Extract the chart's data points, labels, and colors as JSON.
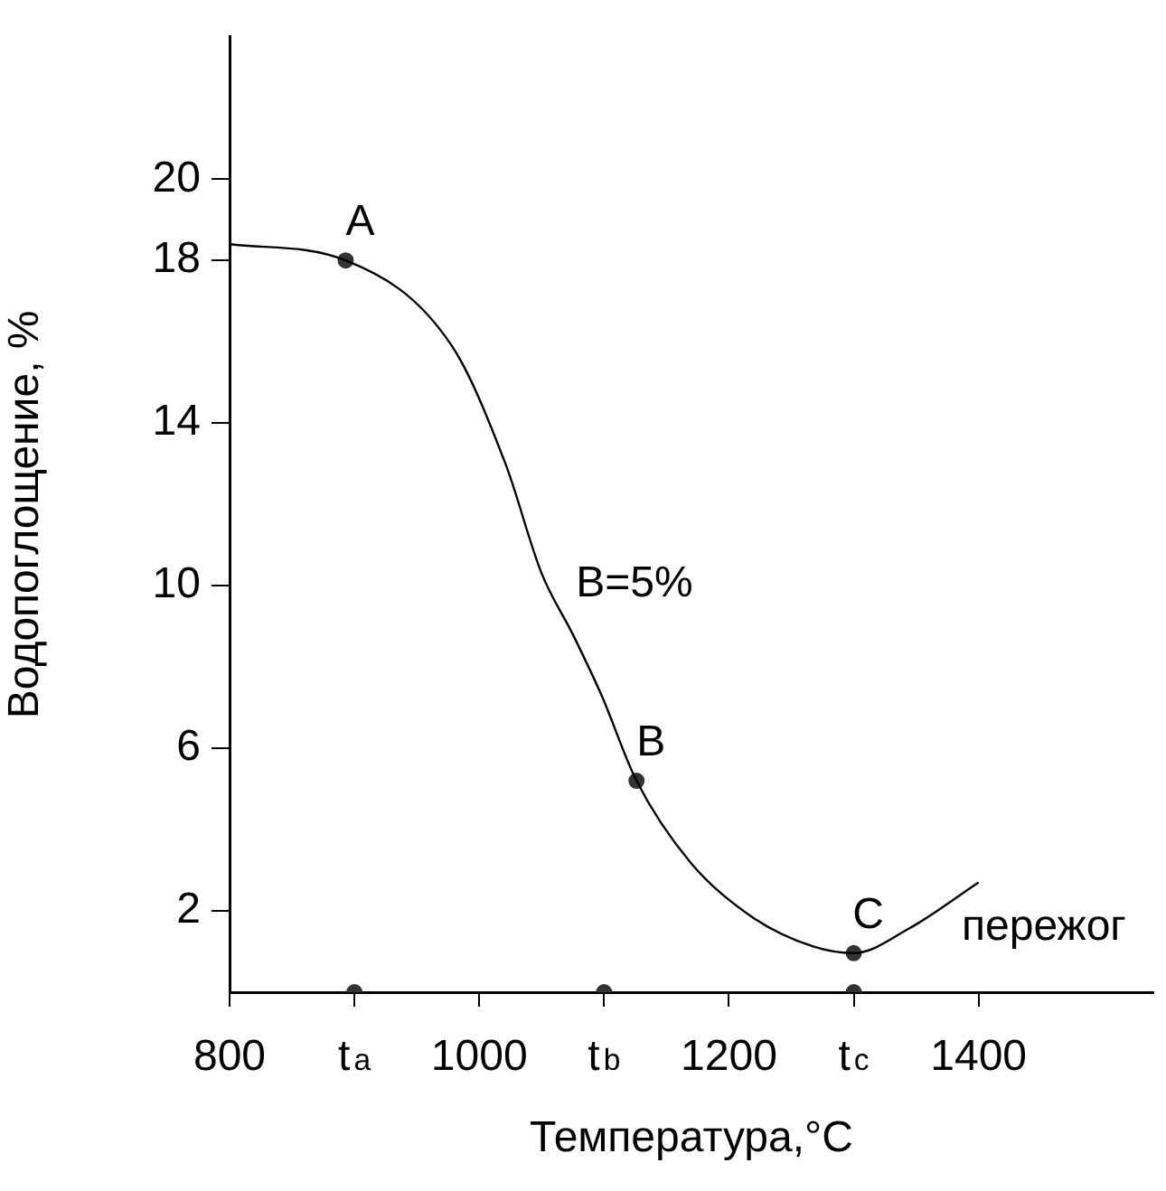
{
  "chart_data": {
    "type": "line",
    "xlabel": "Температура,°C",
    "ylabel": "Водопоглощение, %",
    "xlim": [
      800,
      1540
    ],
    "ylim": [
      0,
      23.5
    ],
    "xticks": [
      800,
      {
        "value": 900,
        "label": "t$_{a}$"
      },
      1000,
      {
        "value": 1100,
        "label": "t$_{b}$"
      },
      1200,
      {
        "value": 1300,
        "label": "t$_{c}$"
      },
      1400
    ],
    "yticks": [
      2,
      6,
      10,
      14,
      18,
      20
    ],
    "series": [
      {
        "x": [
          800,
          893,
          978,
          1021,
          1050,
          1075,
          1098,
          1126,
          1170,
          1219,
          1267,
          1300,
          1344,
          1400
        ],
        "values": [
          18.4,
          18,
          15.9,
          13,
          10.3,
          8.8,
          7.3,
          5.2,
          3.16,
          1.84,
          1.13,
          0.96,
          1.56,
          2.7
        ],
        "color": "#000000",
        "marker": "none"
      },
      {
        "type": "scatter",
        "x": [
          893,
          1126,
          1300
        ],
        "values": [
          18,
          5.2,
          0.96
        ],
        "color": "#333333",
        "marker": "circle"
      },
      {
        "type": "scatter",
        "x": [
          900,
          1100,
          1300
        ],
        "values": [
          0,
          0,
          0
        ],
        "color": "#333333",
        "marker": "circle"
      }
    ],
    "grid": false,
    "legend": false,
    "annotations": [
      {
        "text": "A",
        "x": 893,
        "y": 18
      },
      {
        "text": "B",
        "x": 1126,
        "y": 5.2
      },
      {
        "text": "C",
        "x": 1300,
        "y": 0.96
      },
      "B=5%",
      "пережог"
    ]
  }
}
